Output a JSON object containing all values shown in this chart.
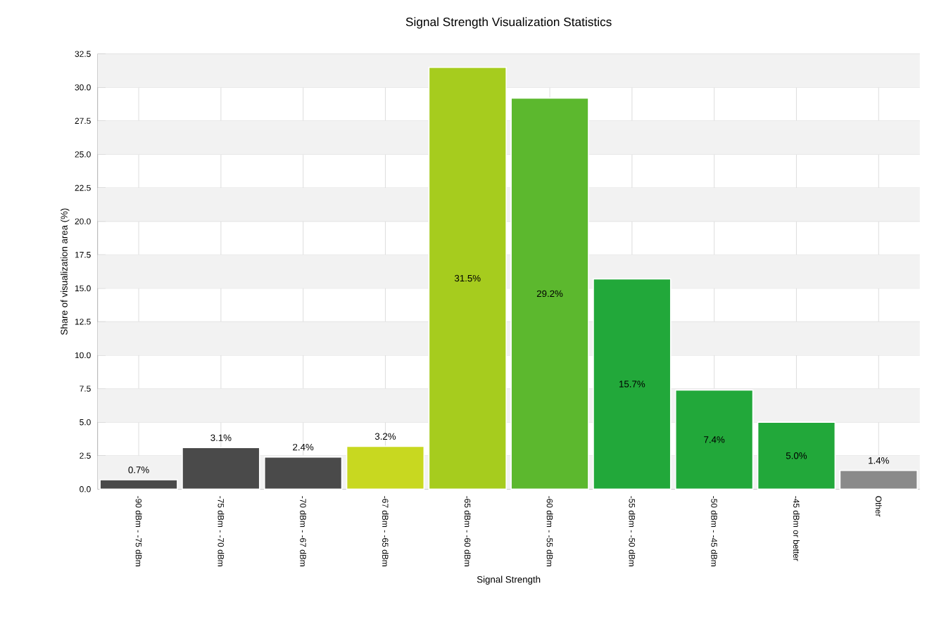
{
  "chart_data": {
    "type": "bar",
    "title": "Signal Strength Visualization Statistics",
    "xlabel": "Signal Strength",
    "ylabel": "Share of visualization area (%)",
    "categories": [
      "-90 dBm - -75 dBm",
      "-75 dBm - -70 dBm",
      "-70 dBm - -67 dBm",
      "-67 dBm - -65 dBm",
      "-65 dBm - -60 dBm",
      "-60 dBm - -55 dBm",
      "-55 dBm - -50 dBm",
      "-50 dBm - -45 dBm",
      "-45 dBm or better",
      "Other"
    ],
    "values": [
      0.7,
      3.1,
      2.4,
      3.2,
      31.5,
      29.2,
      15.7,
      7.4,
      5.0,
      1.4
    ],
    "value_labels": [
      "0.7%",
      "3.1%",
      "2.4%",
      "3.2%",
      "31.5%",
      "29.2%",
      "15.7%",
      "7.4%",
      "5.0%",
      "1.4%"
    ],
    "colors": [
      "#4a4a4a",
      "#4a4a4a",
      "#4a4a4a",
      "#c8d820",
      "#a6cc1e",
      "#5cb82e",
      "#22a83a",
      "#22a83a",
      "#22a83a",
      "#8a8a8a"
    ],
    "ylim": [
      0,
      32.5
    ],
    "yticks": [
      {
        "value": 0,
        "label": "0.0"
      },
      {
        "value": 2.5,
        "label": "2.5"
      },
      {
        "value": 5,
        "label": "5.0"
      },
      {
        "value": 7.5,
        "label": "7.5"
      },
      {
        "value": 10,
        "label": "10.0"
      },
      {
        "value": 12.5,
        "label": "12.5"
      },
      {
        "value": 15,
        "label": "15.0"
      },
      {
        "value": 17.5,
        "label": "17.5"
      },
      {
        "value": 20,
        "label": "20.0"
      },
      {
        "value": 22.5,
        "label": "22.5"
      },
      {
        "value": 25,
        "label": "25.0"
      },
      {
        "value": 27.5,
        "label": "27.5"
      },
      {
        "value": 30,
        "label": "30.0"
      },
      {
        "value": 32.5,
        "label": "32.5"
      }
    ],
    "grid": true
  }
}
